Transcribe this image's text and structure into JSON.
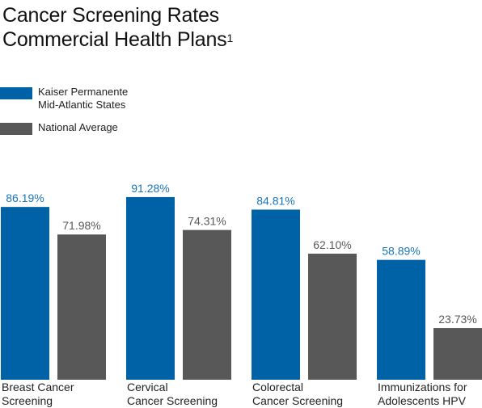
{
  "chart_data": {
    "type": "bar",
    "title_line1": "Cancer Screening Rates",
    "title_line2": "Commercial Health Plans",
    "title_footnote": "1",
    "categories": [
      "Breast Cancer\nScreening",
      "Cervical\nCancer Screening",
      "Colorectal\nCancer Screening",
      "Immunizations for\nAdolescents HPV"
    ],
    "series": [
      {
        "name": "Kaiser Permanente\nMid-Atlantic States",
        "color": "#0062a6",
        "label_color": "#1a74b8",
        "values": [
          86.19,
          91.28,
          84.81,
          58.89
        ],
        "labels": [
          "86.19%",
          "91.28%",
          "84.81%",
          "58.89%"
        ]
      },
      {
        "name": "National Average",
        "color": "#585858",
        "label_color": "#585858",
        "values": [
          71.98,
          74.31,
          62.1,
          23.73
        ],
        "labels": [
          "71.98%",
          "74.31%",
          "62.10%",
          "23.73%"
        ]
      }
    ],
    "ylim": [
      0,
      100
    ],
    "grid": false,
    "legend_position": "top-left"
  }
}
